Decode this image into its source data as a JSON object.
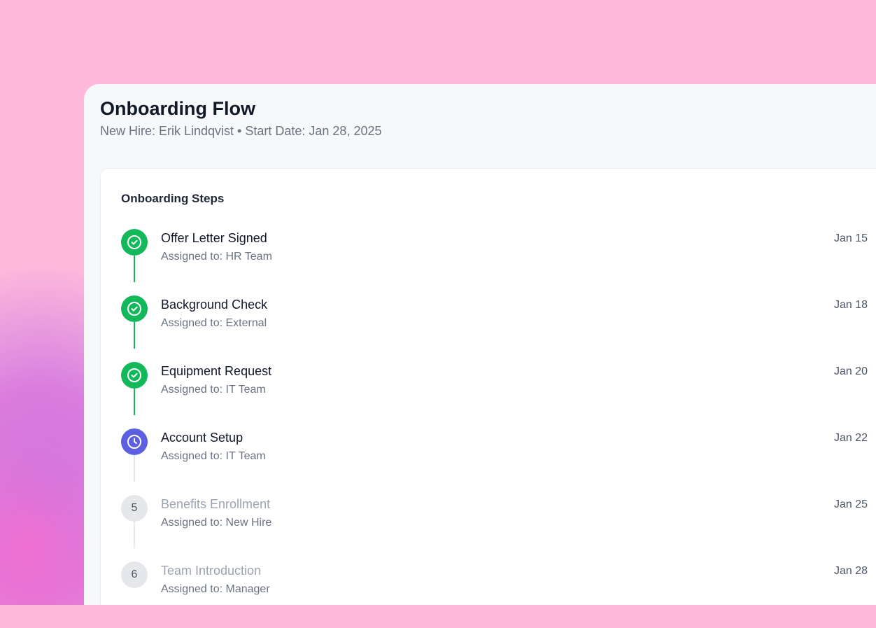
{
  "header": {
    "title": "Onboarding Flow",
    "subtitle": "New Hire: Erik Lindqvist • Start Date: Jan 28, 2025"
  },
  "card": {
    "title": "Onboarding Steps"
  },
  "colors": {
    "completed": "#12b85a",
    "in_progress": "#5b5fe0",
    "pending": "#e5e7eb"
  },
  "steps": [
    {
      "title": "Offer Letter Signed",
      "assignee": "Assigned to: HR Team",
      "date": "Jan 15",
      "status": "completed",
      "icon": "check-circle-icon"
    },
    {
      "title": "Background Check",
      "assignee": "Assigned to: External",
      "date": "Jan 18",
      "status": "completed",
      "icon": "check-circle-icon"
    },
    {
      "title": "Equipment Request",
      "assignee": "Assigned to: IT Team",
      "date": "Jan 20",
      "status": "completed",
      "icon": "check-circle-icon"
    },
    {
      "title": "Account Setup",
      "assignee": "Assigned to: IT Team",
      "date": "Jan 22",
      "status": "in_progress",
      "icon": "clock-icon"
    },
    {
      "title": "Benefits Enrollment",
      "assignee": "Assigned to: New Hire",
      "date": "Jan 25",
      "status": "pending",
      "number": "5"
    },
    {
      "title": "Team Introduction",
      "assignee": "Assigned to: Manager",
      "date": "Jan 28",
      "status": "pending",
      "number": "6"
    }
  ]
}
